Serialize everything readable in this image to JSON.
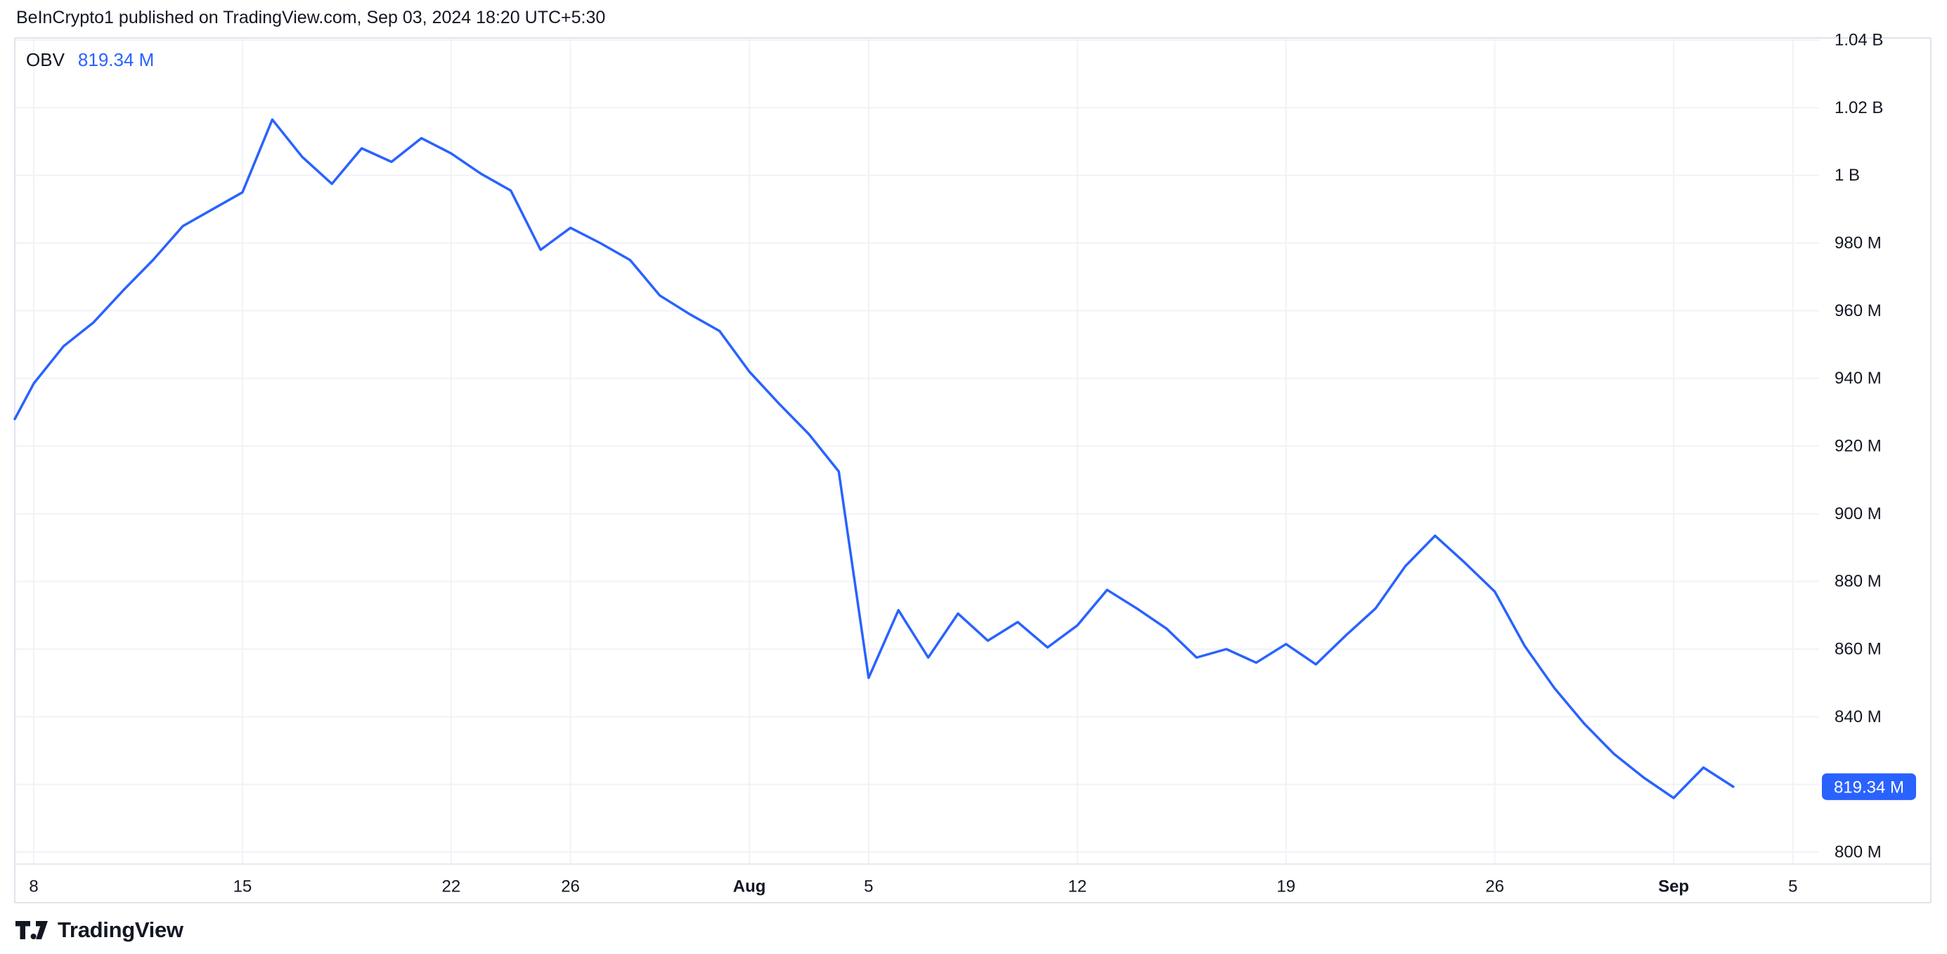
{
  "header": {
    "title": "BeInCrypto1 published on TradingView.com, Sep 03, 2024 18:20 UTC+5:30"
  },
  "legend": {
    "indicator": "OBV",
    "value": "819.34 M"
  },
  "price_scale": {
    "badge": {
      "label": "819.34 M",
      "value": 819.34
    }
  },
  "footer": {
    "brand": "TradingView"
  },
  "theme": {
    "accent": "#2962FF",
    "line_color": "#2962FF",
    "badge_text": "#FFFFFF",
    "grid_color": "#F0F2F6",
    "border_color": "#E0E3EB",
    "axis_separator_color": "#E6E9EF",
    "text_color": "#131722",
    "background": "#FFFFFF"
  },
  "chart_data": {
    "type": "line",
    "title": "OBV",
    "series_name": "OBV",
    "unit": "M",
    "legend_position": "top-left",
    "grid": true,
    "ylim": [
      797,
      1042
    ],
    "last_value": 819.34,
    "last_value_label": "819.34 M",
    "x": [
      "2024-07-07",
      "2024-07-08",
      "2024-07-09",
      "2024-07-10",
      "2024-07-11",
      "2024-07-12",
      "2024-07-13",
      "2024-07-14",
      "2024-07-15",
      "2024-07-16",
      "2024-07-17",
      "2024-07-18",
      "2024-07-19",
      "2024-07-20",
      "2024-07-21",
      "2024-07-22",
      "2024-07-23",
      "2024-07-24",
      "2024-07-25",
      "2024-07-26",
      "2024-07-27",
      "2024-07-28",
      "2024-07-29",
      "2024-07-30",
      "2024-07-31",
      "2024-08-01",
      "2024-08-02",
      "2024-08-03",
      "2024-08-04",
      "2024-08-05",
      "2024-08-06",
      "2024-08-07",
      "2024-08-08",
      "2024-08-09",
      "2024-08-10",
      "2024-08-11",
      "2024-08-12",
      "2024-08-13",
      "2024-08-14",
      "2024-08-15",
      "2024-08-16",
      "2024-08-17",
      "2024-08-18",
      "2024-08-19",
      "2024-08-20",
      "2024-08-21",
      "2024-08-22",
      "2024-08-23",
      "2024-08-24",
      "2024-08-25",
      "2024-08-26",
      "2024-08-27",
      "2024-08-28",
      "2024-08-29",
      "2024-08-30",
      "2024-08-31",
      "2024-09-01",
      "2024-09-02",
      "2024-09-03"
    ],
    "values": [
      928,
      938.5,
      949.5,
      956.5,
      966,
      975,
      985,
      990,
      995,
      1016.5,
      1005.5,
      997.5,
      1008,
      1004,
      1011,
      1006.5,
      1000.5,
      995.5,
      978,
      984.5,
      980,
      975,
      964.5,
      959,
      954,
      942,
      932.5,
      923.5,
      912.5,
      851.5,
      871.5,
      857.5,
      870.5,
      862.5,
      868,
      860.5,
      867,
      877.5,
      872,
      866,
      857.5,
      860,
      856,
      861.5,
      855.5,
      864,
      872,
      884.5,
      893.5,
      885.5,
      877,
      861,
      848.5,
      838,
      829,
      822,
      816,
      825,
      819.34
    ],
    "yticks": [
      {
        "value": 1040,
        "label": "1.04 B"
      },
      {
        "value": 1020,
        "label": "1.02 B"
      },
      {
        "value": 1000,
        "label": "1 B"
      },
      {
        "value": 980,
        "label": "980 M"
      },
      {
        "value": 960,
        "label": "960 M"
      },
      {
        "value": 940,
        "label": "940 M"
      },
      {
        "value": 920,
        "label": "920 M"
      },
      {
        "value": 900,
        "label": "900 M"
      },
      {
        "value": 880,
        "label": "880 M"
      },
      {
        "value": 860,
        "label": "860 M"
      },
      {
        "value": 840,
        "label": "840 M"
      },
      {
        "value": 820,
        "label": ""
      },
      {
        "value": 800,
        "label": "800 M"
      }
    ],
    "xticks": [
      {
        "label": "8",
        "day_index": 1,
        "bold": false
      },
      {
        "label": "15",
        "day_index": 8,
        "bold": false
      },
      {
        "label": "22",
        "day_index": 15,
        "bold": false
      },
      {
        "label": "26",
        "day_index": 19,
        "bold": false
      },
      {
        "label": "Aug",
        "day_index": 25,
        "bold": true
      },
      {
        "label": "5",
        "day_index": 29,
        "bold": false
      },
      {
        "label": "12",
        "day_index": 36,
        "bold": false
      },
      {
        "label": "19",
        "day_index": 43,
        "bold": false
      },
      {
        "label": "26",
        "day_index": 50,
        "bold": false
      },
      {
        "label": "Sep",
        "day_index": 56,
        "bold": true
      },
      {
        "label": "5",
        "day_index": 60,
        "bold": false
      }
    ]
  }
}
